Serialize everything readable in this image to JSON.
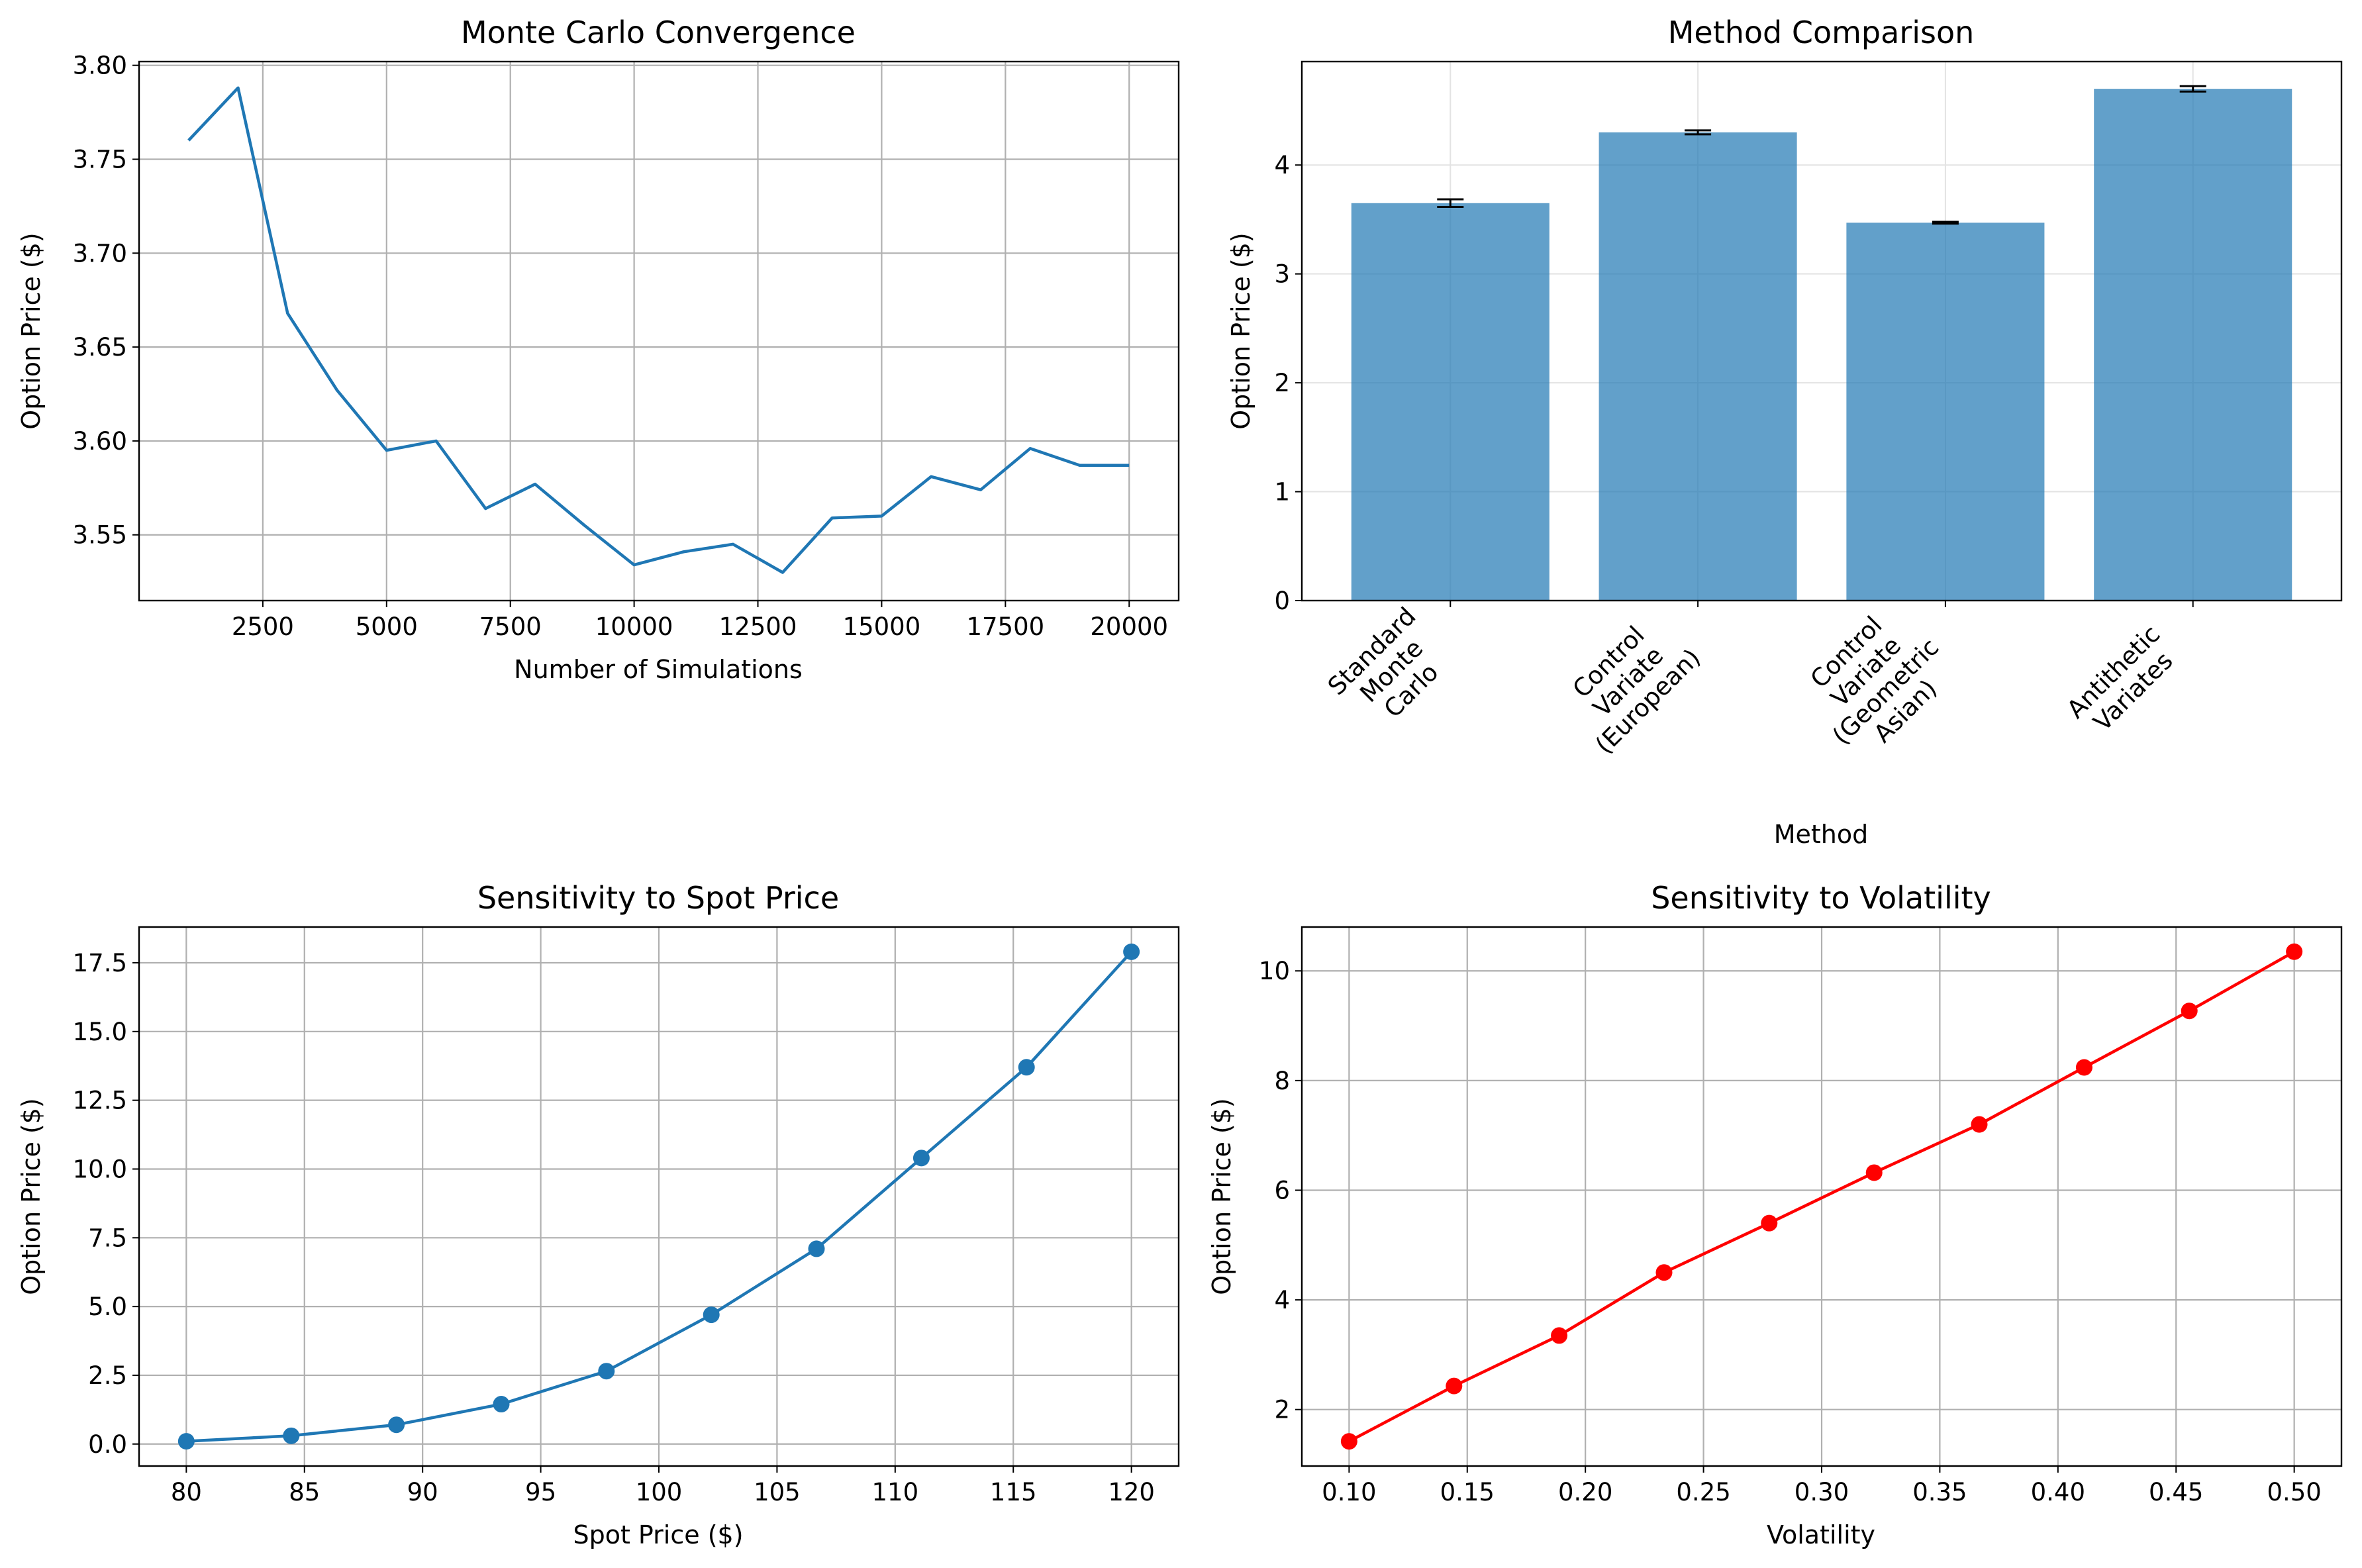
{
  "chart_data": [
    {
      "type": "line",
      "title": "Monte Carlo Convergence",
      "xlabel": "Number of Simulations",
      "ylabel": "Option Price ($)",
      "xlim": [
        0,
        21000
      ],
      "ylim": [
        3.515,
        3.802
      ],
      "xticks": [
        2500,
        5000,
        7500,
        10000,
        12500,
        15000,
        17500,
        20000
      ],
      "yticks": [
        3.55,
        3.6,
        3.65,
        3.7,
        3.75,
        3.8
      ],
      "grid": true,
      "color": "#1f77b4",
      "x": [
        1000,
        2000,
        3000,
        4000,
        5000,
        6000,
        7000,
        8000,
        9000,
        10000,
        11000,
        12000,
        13000,
        14000,
        15000,
        16000,
        17000,
        18000,
        19000,
        20000
      ],
      "y": [
        3.76,
        3.788,
        3.668,
        3.627,
        3.595,
        3.6,
        3.564,
        3.577,
        3.555,
        3.534,
        3.541,
        3.545,
        3.53,
        3.559,
        3.56,
        3.581,
        3.574,
        3.596,
        3.587,
        3.587
      ]
    },
    {
      "type": "bar",
      "title": "Method Comparison",
      "xlabel": "Method",
      "ylabel": "Option Price ($)",
      "ylim": [
        0,
        4.95
      ],
      "yticks": [
        0,
        1,
        2,
        3,
        4
      ],
      "grid": true,
      "color": "#1f77b4",
      "categories": [
        [
          "Standard",
          "Monte",
          "Carlo"
        ],
        [
          "Control",
          "Variate",
          "(European)"
        ],
        [
          "Control",
          "Variate",
          "(Geometric",
          "Asian)"
        ],
        [
          "Antithetic",
          "Variates"
        ]
      ],
      "values": [
        3.65,
        4.3,
        3.47,
        4.7
      ],
      "errors": [
        0.035,
        0.018,
        0.008,
        0.025
      ]
    },
    {
      "type": "line",
      "title": "Sensitivity to Spot Price",
      "xlabel": "Spot Price ($)",
      "ylabel": "Option Price ($)",
      "xlim": [
        78,
        122
      ],
      "ylim": [
        -0.8,
        18.8
      ],
      "xticks": [
        80,
        85,
        90,
        95,
        100,
        105,
        110,
        115,
        120
      ],
      "yticks": [
        "0.0",
        "2.5",
        "5.0",
        "7.5",
        "10.0",
        "12.5",
        "15.0",
        "17.5"
      ],
      "grid": true,
      "color": "#1f77b4",
      "x": [
        80.0,
        84.44,
        88.89,
        93.33,
        97.78,
        102.22,
        106.67,
        111.11,
        115.56,
        120.0
      ],
      "y": [
        0.1,
        0.3,
        0.7,
        1.45,
        2.65,
        4.7,
        7.1,
        10.4,
        13.7,
        17.9
      ]
    },
    {
      "type": "line",
      "title": "Sensitivity to Volatility",
      "xlabel": "Volatility",
      "ylabel": "Option Price ($)",
      "xlim": [
        0.08,
        0.52
      ],
      "ylim": [
        0.97,
        10.8
      ],
      "xticks": [
        "0.10",
        "0.15",
        "0.20",
        "0.25",
        "0.30",
        "0.35",
        "0.40",
        "0.45",
        "0.50"
      ],
      "yticks": [
        2,
        4,
        6,
        8,
        10
      ],
      "grid": true,
      "color": "#ff0000",
      "x": [
        0.1,
        0.1444,
        0.1889,
        0.2333,
        0.2778,
        0.3222,
        0.3667,
        0.4111,
        0.4556,
        0.5
      ],
      "y": [
        1.42,
        2.43,
        3.35,
        4.5,
        5.4,
        6.32,
        7.2,
        8.24,
        9.27,
        10.35
      ]
    }
  ]
}
